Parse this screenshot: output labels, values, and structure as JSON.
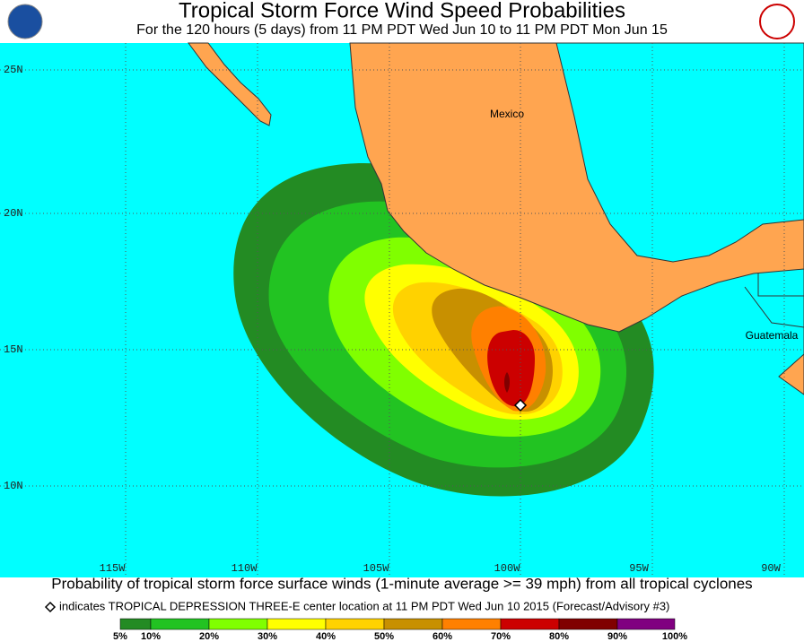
{
  "header": {
    "title": "Tropical Storm Force Wind Speed Probabilities",
    "subtitle": "For the 120 hours (5 days) from 11 PM PDT Wed Jun 10 to 11 PM PDT Mon Jun 15"
  },
  "map": {
    "lat_labels": [
      "25N",
      "20N",
      "15N",
      "10N"
    ],
    "lon_labels": [
      "115W",
      "110W",
      "105W",
      "100W",
      "95W",
      "90W"
    ],
    "places": [
      "Mexico",
      "Guatemala"
    ]
  },
  "footer": {
    "caption": "Probability of tropical storm force surface winds (1-minute average >= 39 mph) from all tropical cyclones",
    "marker_note": "indicates TROPICAL DEPRESSION THREE-E center location at 11 PM PDT Wed Jun 10 2015 (Forecast/Advisory #3)"
  },
  "legend": {
    "labels": [
      "5%",
      "10%",
      "20%",
      "30%",
      "40%",
      "50%",
      "60%",
      "70%",
      "80%",
      "90%",
      "100%"
    ],
    "colors": [
      "#238b23",
      "#22c322",
      "#80ff00",
      "#ffff00",
      "#ffd200",
      "#c89000",
      "#ff8000",
      "#cc0000",
      "#800000",
      "#800080"
    ]
  }
}
